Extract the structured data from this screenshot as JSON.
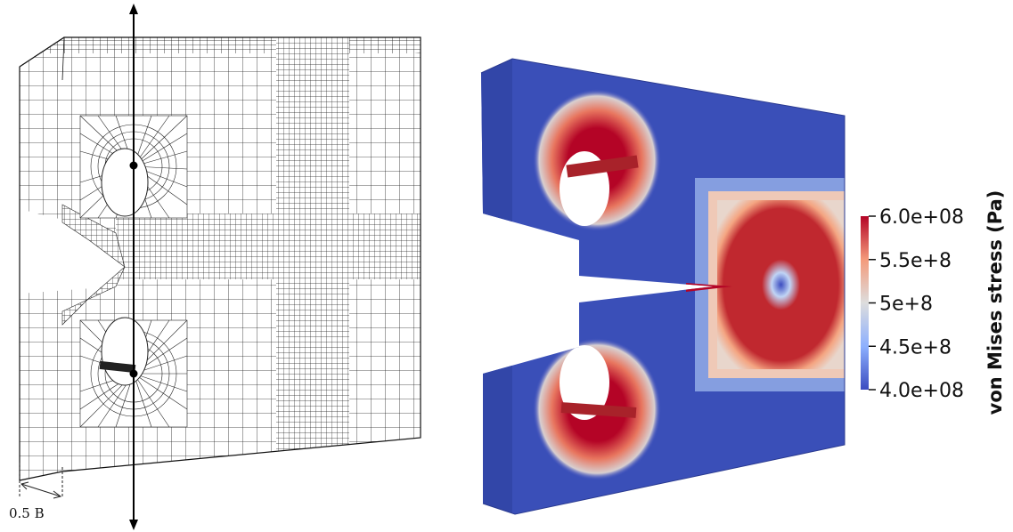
{
  "mesh_panel": {
    "dimension_label": "0.5 B"
  },
  "stress_panel": {
    "colorbar": {
      "title": "von Mises stress (Pa)",
      "ticks": [
        {
          "label": "6.0e+08",
          "value": 600000000
        },
        {
          "label": "5.5e+8",
          "value": 550000000
        },
        {
          "label": "5e+8",
          "value": 500000000
        },
        {
          "label": "4.5e+8",
          "value": 450000000
        },
        {
          "label": "4.0e+08",
          "value": 400000000
        }
      ],
      "range": [
        400000000,
        600000000
      ],
      "colors": {
        "low": "#3b4cc0",
        "mid": "#dddddd",
        "high": "#b40426"
      }
    }
  }
}
